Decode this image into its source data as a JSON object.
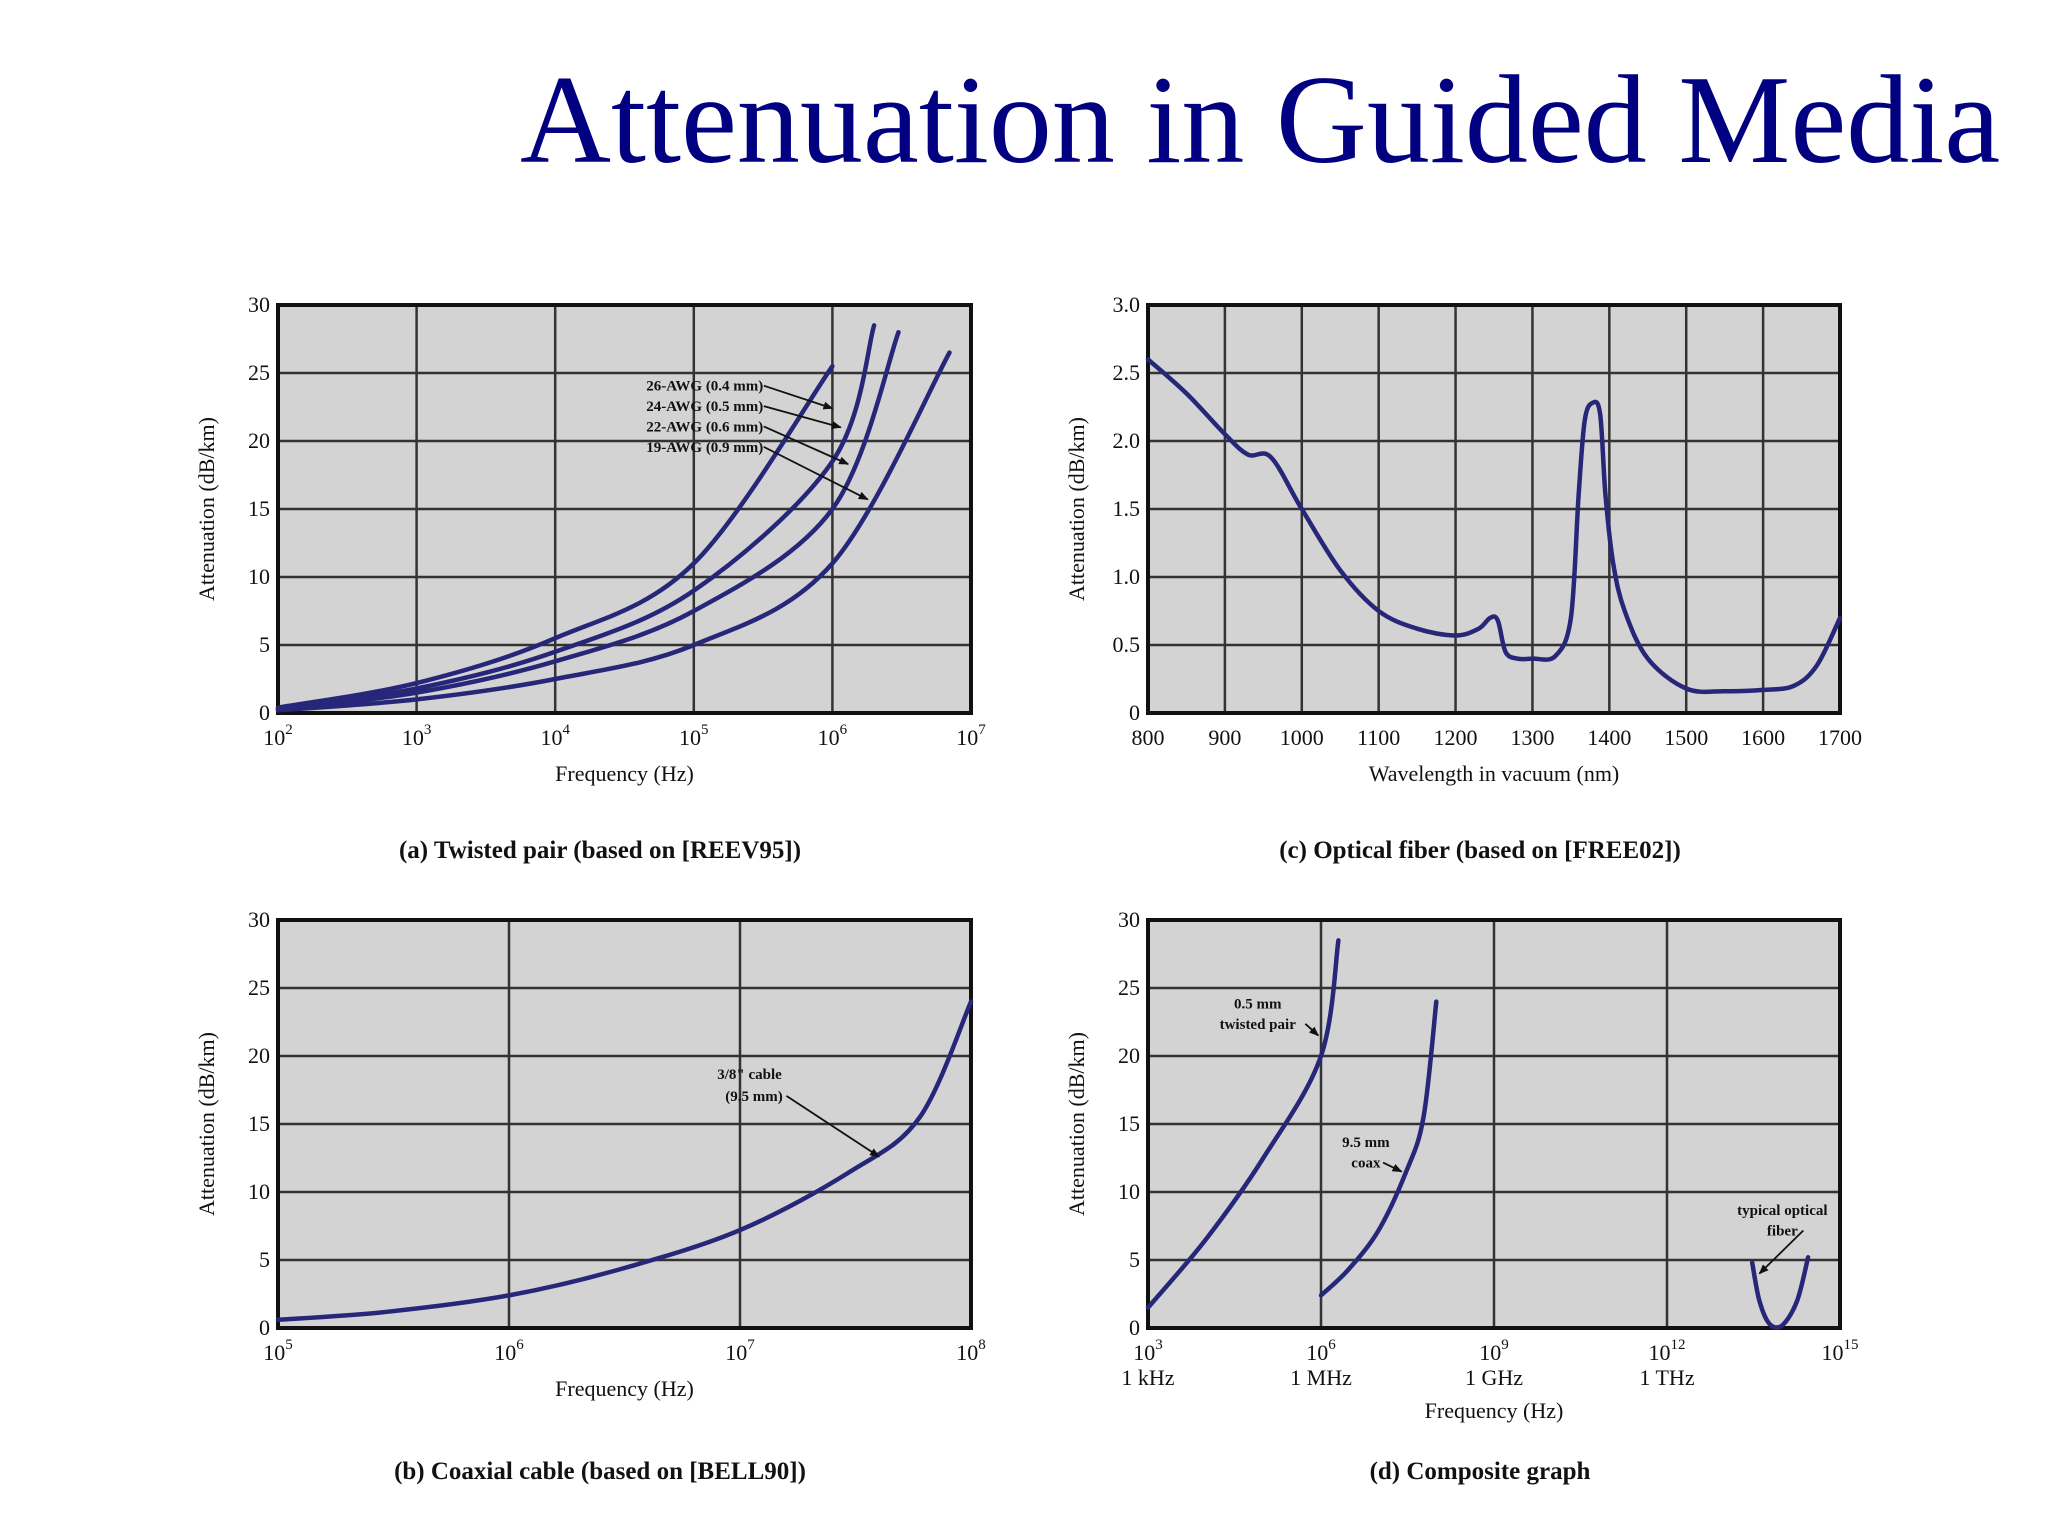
{
  "slide": {
    "title": "Attenuation in Guided Media"
  },
  "colors": {
    "title": "#000080",
    "curve": "#27277a",
    "plot_bg": "#d3d3d3",
    "grid": "#333333"
  },
  "chart_data": [
    {
      "id": "a",
      "type": "line",
      "caption": "(a) Twisted pair (based on [REEV95])",
      "xlabel": "Frequency (Hz)",
      "ylabel": "Attenuation (dB/km)",
      "xscale": "log",
      "xlim": [
        100,
        10000000
      ],
      "ylim": [
        0,
        30
      ],
      "xticks": [
        {
          "v": 100,
          "base": "10",
          "exp": "2"
        },
        {
          "v": 1000,
          "base": "10",
          "exp": "3"
        },
        {
          "v": 10000,
          "base": "10",
          "exp": "4"
        },
        {
          "v": 100000,
          "base": "10",
          "exp": "5"
        },
        {
          "v": 1000000,
          "base": "10",
          "exp": "6"
        },
        {
          "v": 10000000,
          "base": "10",
          "exp": "7"
        }
      ],
      "yticks": [
        {
          "v": 0,
          "label": "0"
        },
        {
          "v": 5,
          "label": "5"
        },
        {
          "v": 10,
          "label": "10"
        },
        {
          "v": 15,
          "label": "15"
        },
        {
          "v": 20,
          "label": "20"
        },
        {
          "v": 25,
          "label": "25"
        },
        {
          "v": 30,
          "label": "30"
        }
      ],
      "grid": true,
      "series": [
        {
          "name": "26-AWG (0.4 mm)",
          "x": [
            100,
            1000,
            10000,
            100000,
            1000000
          ],
          "y": [
            0.4,
            2.2,
            5.5,
            11,
            25.5
          ]
        },
        {
          "name": "24-AWG (0.5 mm)",
          "x": [
            100,
            1000,
            10000,
            100000,
            1000000,
            2000000
          ],
          "y": [
            0.3,
            1.8,
            4.5,
            9,
            18.5,
            28.5
          ]
        },
        {
          "name": "22-AWG (0.6 mm)",
          "x": [
            100,
            1000,
            10000,
            100000,
            1000000,
            3000000
          ],
          "y": [
            0.25,
            1.5,
            3.8,
            7.5,
            15,
            28
          ]
        },
        {
          "name": "19-AWG (0.9 mm)",
          "x": [
            100,
            1000,
            10000,
            100000,
            1000000,
            7000000
          ],
          "y": [
            0.2,
            1,
            2.5,
            5,
            11,
            26.5
          ]
        }
      ],
      "annotations": [
        {
          "text": "26-AWG (0.4 mm)",
          "x": 120000,
          "y": 23.7,
          "ax": 1000000,
          "ay": 22.4
        },
        {
          "text": "24-AWG (0.5 mm)",
          "x": 120000,
          "y": 22.2,
          "ax": 1150000,
          "ay": 21.0
        },
        {
          "text": "22-AWG (0.6 mm)",
          "x": 120000,
          "y": 20.7,
          "ax": 1300000,
          "ay": 18.3
        },
        {
          "text": "19-AWG (0.9 mm)",
          "x": 120000,
          "y": 19.2,
          "ax": 1800000,
          "ay": 15.7
        }
      ]
    },
    {
      "id": "c",
      "type": "line",
      "caption": "(c) Optical fiber (based on [FREE02])",
      "xlabel": "Wavelength in vacuum (nm)",
      "ylabel": "Attenuation (dB/km)",
      "xscale": "linear",
      "xlim": [
        800,
        1700
      ],
      "ylim": [
        0,
        3
      ],
      "xticks": [
        {
          "v": 800,
          "label": "800"
        },
        {
          "v": 900,
          "label": "900"
        },
        {
          "v": 1000,
          "label": "1000"
        },
        {
          "v": 1100,
          "label": "1100"
        },
        {
          "v": 1200,
          "label": "1200"
        },
        {
          "v": 1300,
          "label": "1300"
        },
        {
          "v": 1400,
          "label": "1400"
        },
        {
          "v": 1500,
          "label": "1500"
        },
        {
          "v": 1600,
          "label": "1600"
        },
        {
          "v": 1700,
          "label": "1700"
        }
      ],
      "yticks": [
        {
          "v": 0,
          "label": "0"
        },
        {
          "v": 0.5,
          "label": "0.5"
        },
        {
          "v": 1,
          "label": "1.0"
        },
        {
          "v": 1.5,
          "label": "1.5"
        },
        {
          "v": 2,
          "label": "2.0"
        },
        {
          "v": 2.5,
          "label": "2.5"
        },
        {
          "v": 3,
          "label": "3.0"
        }
      ],
      "grid": true,
      "series": [
        {
          "x": [
            800,
            850,
            900,
            930,
            960,
            1000,
            1050,
            1100,
            1150,
            1200,
            1230,
            1245,
            1255,
            1265,
            1280,
            1300,
            1330,
            1350,
            1360,
            1368,
            1378,
            1388,
            1395,
            1405,
            1420,
            1450,
            1500,
            1550,
            1600,
            1640,
            1670,
            1700
          ],
          "y": [
            2.6,
            2.35,
            2.05,
            1.9,
            1.88,
            1.5,
            1.05,
            0.75,
            0.62,
            0.57,
            0.62,
            0.7,
            0.68,
            0.45,
            0.4,
            0.4,
            0.42,
            0.7,
            1.6,
            2.15,
            2.28,
            2.2,
            1.6,
            1.1,
            0.75,
            0.4,
            0.18,
            0.16,
            0.17,
            0.2,
            0.35,
            0.7
          ]
        }
      ],
      "annotations": []
    },
    {
      "id": "b",
      "type": "line",
      "caption": "(b) Coaxial cable (based on [BELL90])",
      "xlabel": "Frequency (Hz)",
      "ylabel": "Attenuation (dB/km)",
      "xscale": "log",
      "xlim": [
        100000,
        100000000
      ],
      "ylim": [
        0,
        30
      ],
      "xticks": [
        {
          "v": 100000,
          "base": "10",
          "exp": "5"
        },
        {
          "v": 1000000,
          "base": "10",
          "exp": "6"
        },
        {
          "v": 10000000,
          "base": "10",
          "exp": "7"
        },
        {
          "v": 100000000,
          "base": "10",
          "exp": "8"
        }
      ],
      "yticks": [
        {
          "v": 0,
          "label": "0"
        },
        {
          "v": 5,
          "label": "5"
        },
        {
          "v": 10,
          "label": "10"
        },
        {
          "v": 15,
          "label": "15"
        },
        {
          "v": 20,
          "label": "20"
        },
        {
          "v": 25,
          "label": "25"
        },
        {
          "v": 30,
          "label": "30"
        }
      ],
      "grid": true,
      "series": [
        {
          "name": "3/8\" cable (9.5 mm)",
          "x": [
            100000,
            300000,
            1000000,
            3000000,
            10000000,
            30000000,
            60000000,
            100000000
          ],
          "y": [
            0.6,
            1.2,
            2.4,
            4.3,
            7.2,
            11.5,
            15.5,
            24
          ]
        }
      ],
      "annotations": [
        {
          "text": "3/8\" cable",
          "x": 11000000,
          "y": 18.3,
          "ax": null,
          "ay": null
        },
        {
          "text": "(9.5 mm)",
          "x": 11500000,
          "y": 16.7,
          "ax": 40000000,
          "ay": 12.6
        }
      ]
    },
    {
      "id": "d",
      "type": "line",
      "caption": "(d) Composite graph",
      "xlabel": "Frequency (Hz)",
      "ylabel": "Attenuation (dB/km)",
      "xscale": "log",
      "xlim": [
        1000,
        1000000000000000
      ],
      "ylim": [
        0,
        30
      ],
      "xticks": [
        {
          "v": 1000,
          "base": "10",
          "exp": "3",
          "sub": "1 kHz"
        },
        {
          "v": 1000000,
          "base": "10",
          "exp": "6",
          "sub": "1 MHz"
        },
        {
          "v": 1000000000,
          "base": "10",
          "exp": "9",
          "sub": "1 GHz"
        },
        {
          "v": 1000000000000,
          "base": "10",
          "exp": "12",
          "sub": "1 THz"
        },
        {
          "v": 1000000000000000,
          "base": "10",
          "exp": "15",
          "sub": ""
        }
      ],
      "yticks": [
        {
          "v": 0,
          "label": "0"
        },
        {
          "v": 5,
          "label": "5"
        },
        {
          "v": 10,
          "label": "10"
        },
        {
          "v": 15,
          "label": "15"
        },
        {
          "v": 20,
          "label": "20"
        },
        {
          "v": 25,
          "label": "25"
        },
        {
          "v": 30,
          "label": "30"
        }
      ],
      "grid": true,
      "series": [
        {
          "name": "0.5 mm twisted pair",
          "x": [
            1000,
            10000,
            100000,
            1000000,
            2000000
          ],
          "y": [
            1.5,
            6.5,
            12.5,
            20,
            28.5
          ]
        },
        {
          "name": "9.5 mm coax",
          "x": [
            1000000,
            3000000,
            10000000,
            30000000,
            60000000,
            100000000
          ],
          "y": [
            2.4,
            4.3,
            7.2,
            11.5,
            15.5,
            24
          ]
        },
        {
          "name": "typical optical fiber",
          "x": [
            30000000000000,
            40000000000000,
            60000000000000,
            100000000000000,
            180000000000000,
            280000000000000
          ],
          "y": [
            4.8,
            2,
            0.3,
            0.2,
            2,
            5.2
          ]
        }
      ],
      "annotations": [
        {
          "text": "0.5 mm",
          "x": 80000,
          "y": 23.5,
          "ax": null,
          "ay": null
        },
        {
          "text": "twisted pair",
          "x": 80000,
          "y": 22,
          "ax": 900000,
          "ay": 21.5
        },
        {
          "text": "9.5 mm",
          "x": 6000000,
          "y": 13.3,
          "ax": null,
          "ay": null
        },
        {
          "text": "coax",
          "x": 6000000,
          "y": 11.8,
          "ax": 25000000,
          "ay": 11.5
        },
        {
          "text": "typical optical",
          "x": 100000000000000,
          "y": 8.3,
          "ax": null,
          "ay": null
        },
        {
          "text": "fiber",
          "x": 100000000000000,
          "y": 6.8,
          "ax": 40000000000000,
          "ay": 4
        }
      ]
    }
  ]
}
